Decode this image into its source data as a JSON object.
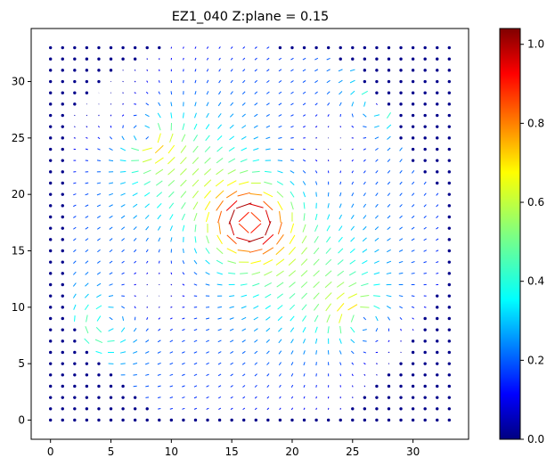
{
  "chart_data": {
    "type": "quiver",
    "title": "EZ1_040   Z:plane = 0.15",
    "xlabel": "",
    "ylabel": "",
    "xlim": [
      -1.6,
      34.6
    ],
    "ylim": [
      -1.7,
      34.7
    ],
    "x_ticks": [
      0,
      5,
      10,
      15,
      20,
      25,
      30
    ],
    "y_ticks": [
      0,
      5,
      10,
      15,
      20,
      25,
      30
    ],
    "grid": {
      "x_start": 0,
      "x_end": 33,
      "y_start": 0,
      "y_end": 33,
      "step": 1
    },
    "region_upper_y_by_column": [
      13,
      19,
      27,
      28,
      29,
      30,
      31,
      31,
      32,
      32,
      33,
      33,
      33,
      33,
      33,
      33,
      33,
      33,
      33,
      32,
      32,
      32,
      32,
      32,
      31,
      31,
      29,
      28,
      27,
      24,
      22,
      21,
      20,
      19
    ],
    "region_lower_y_by_column": [
      99,
      99,
      9,
      7,
      6,
      5,
      4,
      3,
      2,
      1,
      1,
      1,
      1,
      1,
      1,
      1,
      1,
      1,
      1,
      1,
      1,
      1,
      1,
      1,
      1,
      2,
      3,
      4,
      5,
      6,
      8,
      10,
      12,
      99
    ],
    "vortices": [
      {
        "x": 16.5,
        "y": 17.5,
        "strength": 2.2,
        "sign": 1
      },
      {
        "x": 8.0,
        "y": 25.0,
        "strength": 1.0,
        "sign": -1
      },
      {
        "x": 25.5,
        "y": 9.0,
        "strength": 1.0,
        "sign": -1
      },
      {
        "x": 27.0,
        "y": 28.0,
        "strength": 0.9,
        "sign": 1
      },
      {
        "x": 4.5,
        "y": 8.5,
        "strength": 0.9,
        "sign": 1
      }
    ],
    "uniform_flow": [
      0.0,
      0.0
    ],
    "arrow_scale_cells": 1.35,
    "colorbar": {
      "colormap": "jet",
      "min": 0.0,
      "max": 1.04,
      "ticks": [
        {
          "value": 0.0,
          "label": "0.0"
        },
        {
          "value": 0.2,
          "label": "0.2"
        },
        {
          "value": 0.4,
          "label": "0.4"
        },
        {
          "value": 0.6,
          "label": "0.6"
        },
        {
          "value": 0.8,
          "label": "0.8"
        },
        {
          "value": 1.0,
          "label": "1.0"
        }
      ]
    },
    "outside_marker_color": "#00008b",
    "legend": "none",
    "grid_lines": false
  }
}
